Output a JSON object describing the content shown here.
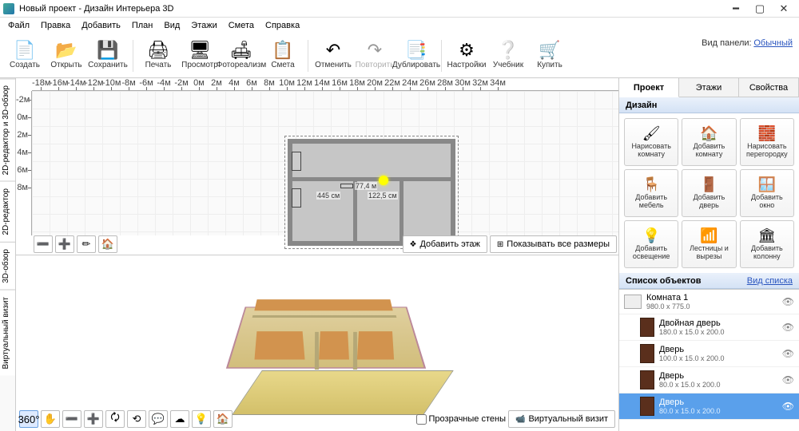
{
  "window": {
    "title": "Новый проект - Дизайн Интерьера 3D"
  },
  "menu": [
    "Файл",
    "Правка",
    "Добавить",
    "План",
    "Вид",
    "Этажи",
    "Смета",
    "Справка"
  ],
  "view_panel": {
    "label": "Вид панели:",
    "value": "Обычный"
  },
  "toolbar": [
    {
      "icon": "📄",
      "label": "Создать"
    },
    {
      "icon": "📂",
      "label": "Открыть"
    },
    {
      "icon": "💾",
      "label": "Сохранить"
    },
    {
      "sep": true
    },
    {
      "icon": "🖨",
      "label": "Печать"
    },
    {
      "icon": "🖥",
      "label": "Просмотр"
    },
    {
      "icon": "🛋",
      "label": "Фотореализм"
    },
    {
      "icon": "📋",
      "label": "Смета"
    },
    {
      "sep": true
    },
    {
      "icon": "↶",
      "label": "Отменить"
    },
    {
      "icon": "↷",
      "label": "Повторить",
      "disabled": true
    },
    {
      "icon": "📑",
      "label": "Дублировать"
    },
    {
      "sep": true
    },
    {
      "icon": "⚙",
      "label": "Настройки"
    },
    {
      "icon": "❔",
      "label": "Учебник"
    },
    {
      "icon": "🛒",
      "label": "Купить"
    }
  ],
  "left_tabs": [
    "2D-редактор и 3D-обзор",
    "2D-редактор",
    "3D-обзор",
    "Виртуальный визит"
  ],
  "ruler_h": [
    "-18м",
    "-16м",
    "-14м",
    "-12м",
    "-10м",
    "-8м",
    "-6м",
    "-4м",
    "-2м",
    "0м",
    "2м",
    "4м",
    "6м",
    "8м",
    "10м",
    "12м",
    "14м",
    "16м",
    "18м",
    "20м",
    "22м",
    "24м",
    "26м",
    "28м",
    "30м",
    "32м",
    "34м"
  ],
  "ruler_v": [
    "-2м",
    "0м",
    "2м",
    "4м",
    "6м",
    "8м"
  ],
  "plan": {
    "dim1": "77,4 м",
    "dim2": "445 см",
    "dim3": "122,5 см"
  },
  "top_tools": {
    "buttons": [
      "➖",
      "➕",
      "✏",
      "🏠"
    ],
    "add_floor": "Добавить этаж",
    "show_dims": "Показывать все размеры"
  },
  "bot_tools": {
    "buttons": [
      "360°",
      "✋",
      "➖",
      "➕",
      "🗘",
      "⟲",
      "💬",
      "☁",
      "💡",
      "🏠"
    ],
    "transparent": "Прозрачные стены",
    "virtual": "Виртуальный визит"
  },
  "right_tabs": [
    "Проект",
    "Этажи",
    "Свойства"
  ],
  "design_header": "Дизайн",
  "design_buttons": [
    {
      "icon": "🖌",
      "label": "Нарисовать\nкомнату"
    },
    {
      "icon": "🏠",
      "label": "Добавить\nкомнату"
    },
    {
      "icon": "🧱",
      "label": "Нарисовать\nперегородку"
    },
    {
      "icon": "🪑",
      "label": "Добавить\nмебель"
    },
    {
      "icon": "🚪",
      "label": "Добавить\nдверь"
    },
    {
      "icon": "🪟",
      "label": "Добавить\nокно"
    },
    {
      "icon": "💡",
      "label": "Добавить\nосвещение"
    },
    {
      "icon": "📶",
      "label": "Лестницы и\nвырезы"
    },
    {
      "icon": "🏛",
      "label": "Добавить\nколонну"
    }
  ],
  "objects_header": "Список объектов",
  "objects_view": "Вид списка",
  "objects": [
    {
      "name": "Комната 1",
      "dims": "980.0 x 775.0",
      "room": true
    },
    {
      "name": "Двойная дверь",
      "dims": "180.0 x 15.0 x 200.0"
    },
    {
      "name": "Дверь",
      "dims": "100.0 x 15.0 x 200.0"
    },
    {
      "name": "Дверь",
      "dims": "80.0 x 15.0 x 200.0"
    },
    {
      "name": "Дверь",
      "dims": "80.0 x 15.0 x 200.0",
      "selected": true
    }
  ]
}
